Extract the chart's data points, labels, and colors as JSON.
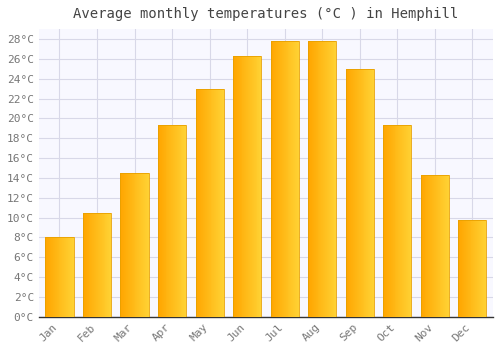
{
  "title": "Average monthly temperatures (°C ) in Hemphill",
  "months": [
    "Jan",
    "Feb",
    "Mar",
    "Apr",
    "May",
    "Jun",
    "Jul",
    "Aug",
    "Sep",
    "Oct",
    "Nov",
    "Dec"
  ],
  "values": [
    8.0,
    10.5,
    14.5,
    19.3,
    23.0,
    26.3,
    27.8,
    27.8,
    25.0,
    19.3,
    14.3,
    9.8
  ],
  "bar_color_left": "#FFA500",
  "bar_color_right": "#FFD060",
  "background_color": "#FFFFFF",
  "plot_bg_color": "#F8F8FF",
  "ytick_step": 2,
  "ymin": 0,
  "ymax": 28,
  "title_fontsize": 10,
  "tick_fontsize": 8,
  "grid_color": "#D8D8E8",
  "tick_color": "#777777",
  "font_family": "monospace"
}
